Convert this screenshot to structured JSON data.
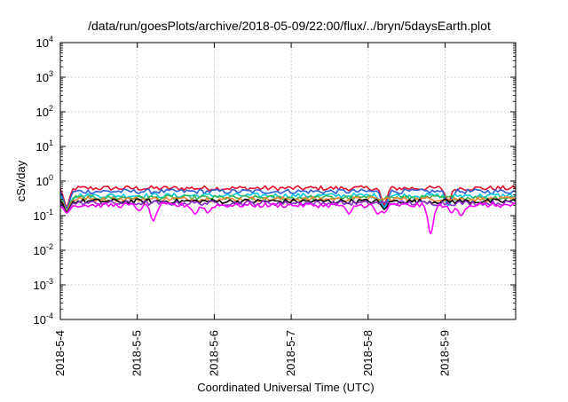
{
  "chart_data": {
    "type": "line",
    "title": "/data/run/goesPlots/archive/2018-05-09/22:00/flux/../bryn/5daysEarth.plot",
    "xlabel": "Coordinated Universal Time (UTC)",
    "ylabel": "cSv/day",
    "yscale": "log",
    "ylim": [
      0.0001,
      10000
    ],
    "xlim": [
      "2018-05-04 00:00",
      "2018-05-09 22:00"
    ],
    "grid": true,
    "legend": "none",
    "x_ticks": [
      "2018-5-4",
      "2018-5-5",
      "2018-5-6",
      "2018-5-7",
      "2018-5-8",
      "2018-5-9"
    ],
    "y_ticks": [
      {
        "base": "10",
        "exp": "-4"
      },
      {
        "base": "10",
        "exp": "-3"
      },
      {
        "base": "10",
        "exp": "-2"
      },
      {
        "base": "10",
        "exp": "-1"
      },
      {
        "base": "10",
        "exp": "0"
      },
      {
        "base": "10",
        "exp": "1"
      },
      {
        "base": "10",
        "exp": "2"
      },
      {
        "base": "10",
        "exp": "3"
      },
      {
        "base": "10",
        "exp": "4"
      }
    ],
    "series": [
      {
        "color": "#e8112d",
        "level": 0.62,
        "dips": [
          {
            "at": "2018-05-04 02:00",
            "value": 0.18
          },
          {
            "at": "2018-05-08 05:00",
            "value": 0.2
          },
          {
            "at": "2018-05-09 01:00",
            "value": 0.25
          }
        ]
      },
      {
        "color": "#2b5bd7",
        "level": 0.5,
        "dips": [
          {
            "at": "2018-05-04 02:00",
            "value": 0.16
          },
          {
            "at": "2018-05-08 05:00",
            "value": 0.17
          },
          {
            "at": "2018-05-09 01:00",
            "value": 0.22
          }
        ]
      },
      {
        "color": "#00c8e0",
        "level": 0.38,
        "dips": [
          {
            "at": "2018-05-04 02:00",
            "value": 0.15
          },
          {
            "at": "2018-05-08 05:00",
            "value": 0.16
          },
          {
            "at": "2018-05-09 01:00",
            "value": 0.2
          }
        ]
      },
      {
        "color": "#3cb44b",
        "level": 0.33,
        "dips": [
          {
            "at": "2018-05-04 02:00",
            "value": 0.14
          }
        ]
      },
      {
        "color": "#f58231",
        "level": 0.3,
        "dips": [
          {
            "at": "2018-05-04 02:00",
            "value": 0.14
          }
        ]
      },
      {
        "color": "#000000",
        "level": 0.26,
        "dips": [
          {
            "at": "2018-05-04 02:00",
            "value": 0.13
          },
          {
            "at": "2018-05-08 05:00",
            "value": 0.15
          }
        ]
      },
      {
        "color": "#8b2fc9",
        "level": 0.23,
        "dips": [
          {
            "at": "2018-05-04 02:00",
            "value": 0.12
          }
        ]
      },
      {
        "color": "#ff00ff",
        "level": 0.2,
        "dips": [
          {
            "at": "2018-05-04 02:00",
            "value": 0.12
          },
          {
            "at": "2018-05-05 00:30",
            "value": 0.14
          },
          {
            "at": "2018-05-05 05:00",
            "value": 0.07
          },
          {
            "at": "2018-05-05 18:00",
            "value": 0.11
          },
          {
            "at": "2018-05-05 22:00",
            "value": 0.12
          },
          {
            "at": "2018-05-07 18:00",
            "value": 0.11
          },
          {
            "at": "2018-05-08 03:00",
            "value": 0.11
          },
          {
            "at": "2018-05-08 05:00",
            "value": 0.12
          },
          {
            "at": "2018-05-08 19:30",
            "value": 0.03
          },
          {
            "at": "2018-05-09 02:00",
            "value": 0.12
          },
          {
            "at": "2018-05-09 05:00",
            "value": 0.1
          }
        ]
      }
    ]
  }
}
